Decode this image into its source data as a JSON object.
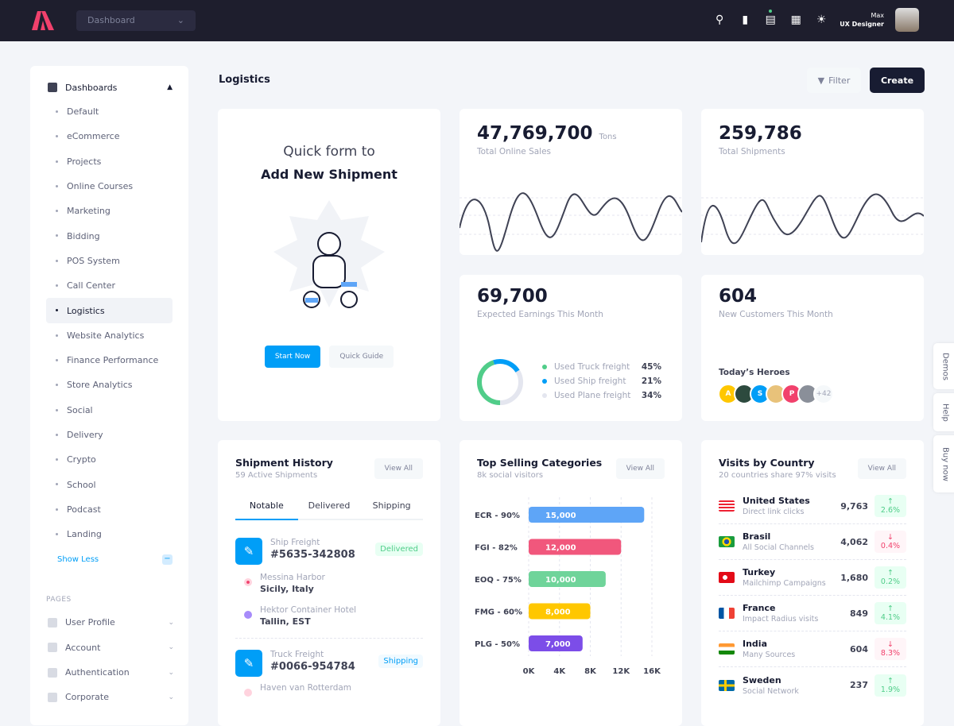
{
  "header": {
    "dropdown": "Dashboard",
    "user_name": "Max",
    "user_role": "UX Designer"
  },
  "sidebar": {
    "section": "Dashboards",
    "items": [
      "Default",
      "eCommerce",
      "Projects",
      "Online Courses",
      "Marketing",
      "Bidding",
      "POS System",
      "Call Center",
      "Logistics",
      "Website Analytics",
      "Finance Performance",
      "Store Analytics",
      "Social",
      "Delivery",
      "Crypto",
      "School",
      "Podcast",
      "Landing"
    ],
    "active": "Logistics",
    "show_less": "Show Less",
    "pages_label": "PAGES",
    "pages": [
      "User Profile",
      "Account",
      "Authentication",
      "Corporate"
    ]
  },
  "page": {
    "title": "Logistics",
    "filter": "Filter",
    "create": "Create"
  },
  "quick_form": {
    "line1": "Quick form to",
    "line2": "Add New Shipment",
    "start": "Start Now",
    "guide": "Quick Guide"
  },
  "stats": {
    "sales": {
      "value": "47,769,700",
      "unit": "Tons",
      "label": "Total Online Sales"
    },
    "shipments": {
      "value": "259,786",
      "label": "Total Shipments"
    },
    "earnings": {
      "value": "69,700",
      "label": "Expected Earnings This Month",
      "legend": [
        {
          "label": "Used Truck freight",
          "pct": "45%",
          "color": "#50cd89"
        },
        {
          "label": "Used Ship freight",
          "pct": "21%",
          "color": "#009ef7"
        },
        {
          "label": "Used Plane freight",
          "pct": "34%",
          "color": "#e4e6ef"
        }
      ]
    },
    "customers": {
      "value": "604",
      "label": "New Customers This Month",
      "heroes_title": "Today’s Heroes",
      "heroes": [
        "A",
        "",
        "S",
        "",
        "P",
        ""
      ],
      "more": "+42"
    }
  },
  "shipment_history": {
    "title": "Shipment History",
    "subtitle": "59 Active Shipments",
    "view_all": "View All",
    "tabs": [
      "Notable",
      "Delivered",
      "Shipping"
    ],
    "items": [
      {
        "type": "Ship Freight",
        "id": "#5635-342808",
        "status": "Delivered",
        "from_name": "Messina Harbor",
        "from_place": "Sicily, Italy",
        "to_name": "Hektor Container Hotel",
        "to_place": "Tallin, EST"
      },
      {
        "type": "Truck Freight",
        "id": "#0066-954784",
        "status": "Shipping",
        "from_name": "Haven van Rotterdam"
      }
    ]
  },
  "chart_data": {
    "type": "bar",
    "title": "Top Selling Categories",
    "subtitle": "8k social visitors",
    "view_all": "View All",
    "orientation": "horizontal",
    "categories": [
      "ECR - 90%",
      "FGI - 82%",
      "EOQ - 75%",
      "FMG - 60%",
      "PLG - 50%"
    ],
    "values": [
      15000,
      12000,
      10000,
      8000,
      7000
    ],
    "labels": [
      "15,000",
      "12,000",
      "10,000",
      "8,000",
      "7,000"
    ],
    "colors": [
      "#5ea5f7",
      "#f1577c",
      "#6fd49a",
      "#ffc700",
      "#7c4de8"
    ],
    "xlim": [
      0,
      16000
    ],
    "xticks": [
      "0K",
      "4K",
      "8K",
      "12K",
      "16K"
    ],
    "grid": true
  },
  "visits": {
    "title": "Visits by Country",
    "subtitle": "20 countries share 97% visits",
    "view_all": "View All",
    "rows": [
      {
        "country": "United States",
        "source": "Direct link clicks",
        "value": "9,763",
        "change": "2.6%",
        "dir": "up"
      },
      {
        "country": "Brasil",
        "source": "All Social Channels",
        "value": "4,062",
        "change": "0.4%",
        "dir": "down"
      },
      {
        "country": "Turkey",
        "source": "Mailchimp Campaigns",
        "value": "1,680",
        "change": "0.2%",
        "dir": "up"
      },
      {
        "country": "France",
        "source": "Impact Radius visits",
        "value": "849",
        "change": "4.1%",
        "dir": "up"
      },
      {
        "country": "India",
        "source": "Many Sources",
        "value": "604",
        "change": "8.3%",
        "dir": "down"
      },
      {
        "country": "Sweden",
        "source": "Social Network",
        "value": "237",
        "change": "1.9%",
        "dir": "up"
      }
    ]
  },
  "right_tabs": [
    "Demos",
    "Help",
    "Buy now"
  ]
}
